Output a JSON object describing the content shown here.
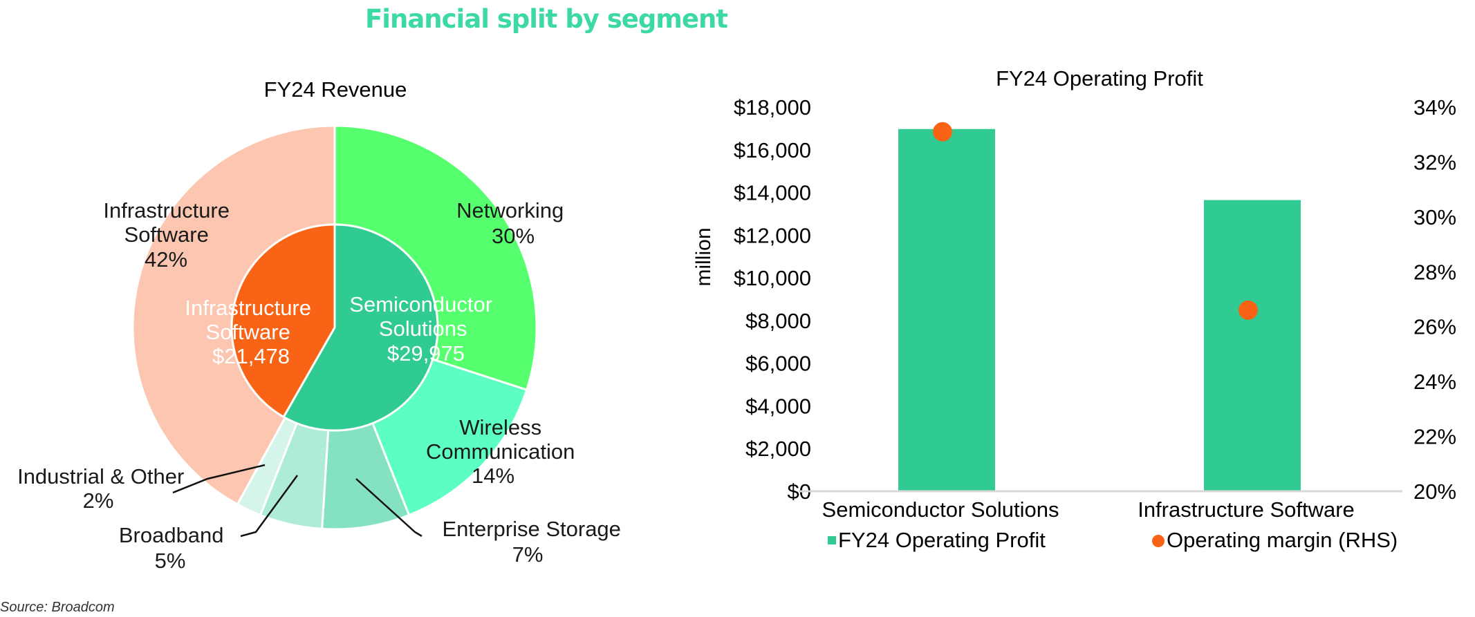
{
  "title": "Financial split by segment",
  "title_color": "#3dd9a4",
  "source": "Source: Broadcom",
  "chart_data": [
    {
      "type": "pie",
      "title": "FY24 Revenue",
      "inner": [
        {
          "name": "Infrastructure Software",
          "value": 21478,
          "label": "$21,478",
          "color": "#f96316"
        },
        {
          "name": "Semiconductor Solutions",
          "value": 29975,
          "label": "$29,975",
          "color": "#30ca93"
        }
      ],
      "outer": [
        {
          "name": "Networking",
          "value": 30,
          "label": "30%",
          "color": "#55ff6e"
        },
        {
          "name": "Wireless Communication",
          "value": 14,
          "label": "14%",
          "color": "#5cffc1"
        },
        {
          "name": "Enterprise Storage",
          "value": 7,
          "label": "7%",
          "color": "#85e2c1"
        },
        {
          "name": "Broadband",
          "value": 5,
          "label": "5%",
          "color": "#aeecd6"
        },
        {
          "name": "Industrial & Other",
          "value": 2,
          "label": "2%",
          "color": "#d6f5ea"
        },
        {
          "name": "Infrastructure Software",
          "value": 42,
          "label": "42%",
          "color": "#fcc6b1"
        }
      ]
    },
    {
      "type": "bar",
      "title": "FY24 Operating Profit",
      "categories": [
        "Semiconductor Solutions",
        "Infrastructure Software"
      ],
      "ylabel": "million",
      "ylim": [
        0,
        18000
      ],
      "yticks": [
        "$0",
        "$2,000",
        "$4,000",
        "$6,000",
        "$8,000",
        "$10,000",
        "$12,000",
        "$14,000",
        "$16,000",
        "$18,000"
      ],
      "y2lim": [
        0.2,
        0.34
      ],
      "y2ticks": [
        "20%",
        "22%",
        "24%",
        "26%",
        "28%",
        "30%",
        "32%",
        "34%"
      ],
      "series": [
        {
          "name": "FY24 Operating Profit",
          "kind": "bar",
          "values": [
            16972,
            13644
          ],
          "color": "#30ca93"
        },
        {
          "name": "Operating margin (RHS)",
          "kind": "scatter",
          "axis": "right",
          "values": [
            0.331,
            0.266
          ],
          "color": "#f96316"
        }
      ],
      "legend_position": "bottom"
    }
  ]
}
